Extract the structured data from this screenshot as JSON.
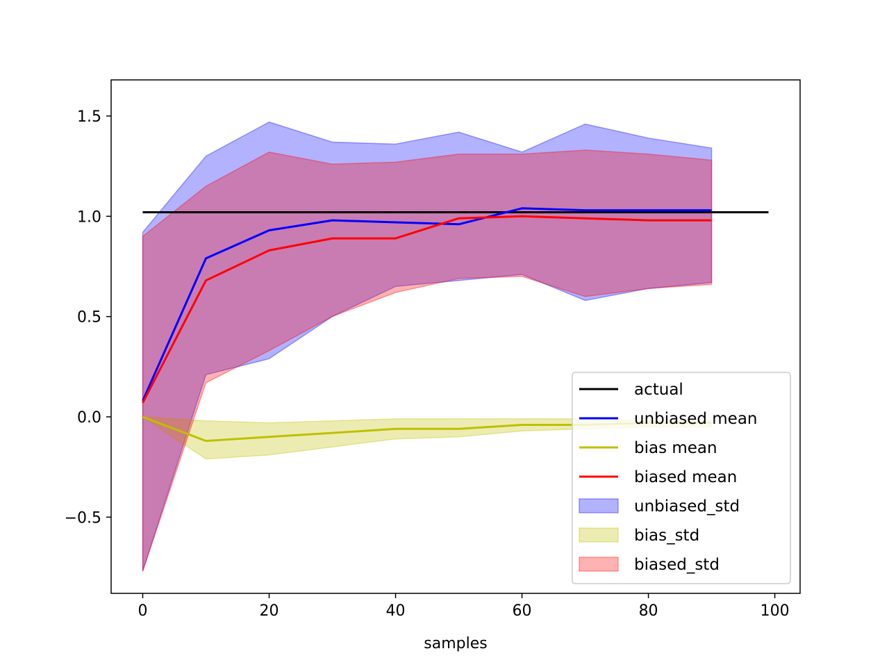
{
  "chart_data": {
    "type": "line",
    "title": "",
    "xlabel": "samples",
    "ylabel": "",
    "xlim": [
      -5,
      104
    ],
    "ylim": [
      -0.88,
      1.68
    ],
    "x_ticks": [
      0,
      20,
      40,
      60,
      80,
      100
    ],
    "y_ticks": [
      -0.5,
      0.0,
      0.5,
      1.0,
      1.5
    ],
    "x_tick_labels": [
      "0",
      "20",
      "40",
      "60",
      "80",
      "100"
    ],
    "y_tick_labels": [
      "−0.5",
      "0.0",
      "0.5",
      "1.0",
      "1.5"
    ],
    "grid": false,
    "legend_position": "lower-right",
    "x_step": 10,
    "series": [
      {
        "name": "actual",
        "kind": "line",
        "color": "#000000",
        "x": [
          0,
          99
        ],
        "values": [
          1.02,
          1.02
        ]
      },
      {
        "name": "unbiased mean",
        "kind": "line",
        "color": "#0000ff",
        "values": [
          0.08,
          0.79,
          0.93,
          0.98,
          0.97,
          0.96,
          1.04,
          1.03,
          1.03,
          1.03
        ]
      },
      {
        "name": "bias mean",
        "kind": "line",
        "color": "#bfbf00",
        "values": [
          0.0,
          -0.12,
          -0.1,
          -0.08,
          -0.06,
          -0.06,
          -0.04,
          -0.04,
          -0.03,
          -0.03
        ]
      },
      {
        "name": "biased mean",
        "kind": "line",
        "color": "#ff0000",
        "values": [
          0.07,
          0.68,
          0.83,
          0.89,
          0.89,
          0.99,
          1.0,
          0.99,
          0.98,
          0.98
        ]
      },
      {
        "name": "unbiased_std",
        "kind": "band",
        "color": "#0000ff",
        "opacity": 0.3,
        "upper": [
          0.92,
          1.3,
          1.47,
          1.37,
          1.36,
          1.42,
          1.32,
          1.46,
          1.39,
          1.34
        ],
        "lower": [
          -0.77,
          0.21,
          0.29,
          0.5,
          0.65,
          0.68,
          0.71,
          0.58,
          0.64,
          0.67
        ]
      },
      {
        "name": "bias_std",
        "kind": "band",
        "color": "#bfbf00",
        "opacity": 0.3,
        "upper": [
          0.0,
          -0.02,
          -0.03,
          -0.02,
          -0.01,
          -0.01,
          -0.01,
          -0.01,
          -0.02,
          -0.02
        ],
        "lower": [
          0.0,
          -0.21,
          -0.19,
          -0.15,
          -0.11,
          -0.1,
          -0.07,
          -0.06,
          -0.05,
          -0.05
        ]
      },
      {
        "name": "biased_std",
        "kind": "band",
        "color": "#ff0000",
        "opacity": 0.3,
        "upper": [
          0.9,
          1.15,
          1.32,
          1.26,
          1.27,
          1.31,
          1.31,
          1.33,
          1.31,
          1.28
        ],
        "lower": [
          -0.77,
          0.17,
          0.33,
          0.5,
          0.62,
          0.69,
          0.7,
          0.6,
          0.64,
          0.66
        ]
      }
    ]
  }
}
